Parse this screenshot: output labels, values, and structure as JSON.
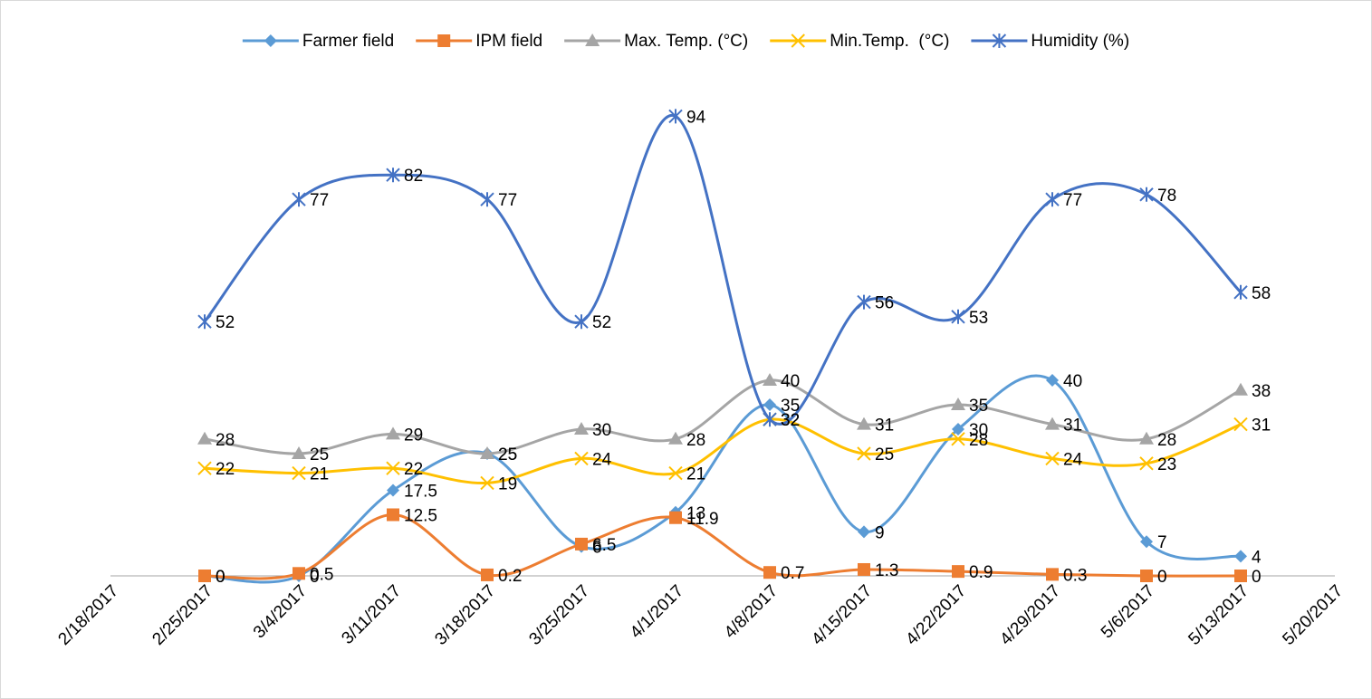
{
  "chart_data": {
    "type": "line",
    "smooth": true,
    "categories": [
      "2/18/2017",
      "2/25/2017",
      "3/4/2017",
      "3/11/2017",
      "3/18/2017",
      "3/25/2017",
      "4/1/2017",
      "4/8/2017",
      "4/15/2017",
      "4/22/2017",
      "4/29/2017",
      "5/6/2017",
      "5/13/2017",
      "5/20/2017"
    ],
    "ylim": [
      0,
      100
    ],
    "legend": "top",
    "series": [
      {
        "name": "Farmer field",
        "color": "#5b9bd5",
        "marker": "diamond",
        "values": [
          null,
          0,
          0,
          17.5,
          25,
          6,
          13,
          35,
          9,
          30,
          40,
          7,
          4,
          null
        ]
      },
      {
        "name": "IPM field",
        "color": "#ed7d31",
        "marker": "square",
        "values": [
          null,
          0,
          0.5,
          12.5,
          0.2,
          6.5,
          11.9,
          0.7,
          1.3,
          0.9,
          0.3,
          0,
          0,
          null
        ]
      },
      {
        "name": "Max. Temp. (°C)",
        "color": "#a5a5a5",
        "marker": "triangle",
        "values": [
          null,
          28,
          25,
          29,
          25,
          30,
          28,
          40,
          31,
          35,
          31,
          28,
          38,
          null
        ]
      },
      {
        "name": "Min.Temp.  (°C)",
        "color": "#ffc000",
        "marker": "x",
        "values": [
          null,
          22,
          21,
          22,
          19,
          24,
          21,
          32,
          25,
          28,
          24,
          23,
          31,
          null
        ]
      },
      {
        "name": "Humidity (%)",
        "color": "#4472c4",
        "marker": "star",
        "values": [
          null,
          52,
          77,
          82,
          77,
          52,
          94,
          32,
          56,
          53,
          77,
          78,
          58,
          null
        ]
      }
    ]
  }
}
